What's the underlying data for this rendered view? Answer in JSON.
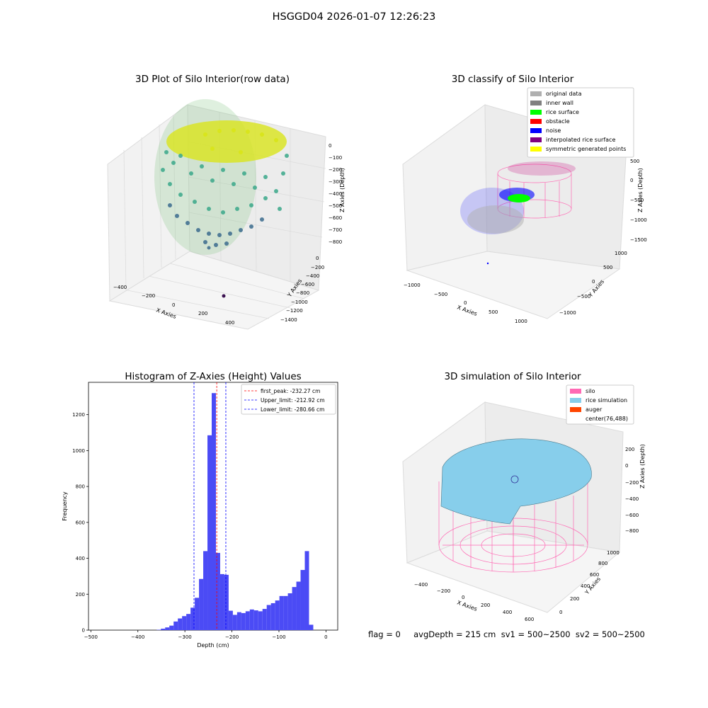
{
  "suptitle": "HSGGD04 2026-01-07 12:26:23",
  "panels": {
    "raw": {
      "title": "3D Plot of Silo Interior(row data)",
      "xlabel": "X Axies",
      "ylabel": "Y Axies",
      "zlabel": "Z Axies (Depth)",
      "xticks": [
        "−400",
        "−200",
        "0",
        "200",
        "400"
      ],
      "yticks": [
        "0",
        "−200",
        "−400",
        "−600",
        "−800",
        "−1000",
        "−1200",
        "−1400"
      ],
      "zticks": [
        "0",
        "−100",
        "−200",
        "−300",
        "−400",
        "−500",
        "−600",
        "−700",
        "−800"
      ]
    },
    "classify": {
      "title": "3D classify of Silo Interior",
      "xlabel": "X Axies",
      "ylabel": "Y Axies",
      "zlabel": "Z Axies (Depth)",
      "xticks": [
        "−1000",
        "−500",
        "0",
        "500",
        "1000"
      ],
      "yticks": [
        "1000",
        "500",
        "0",
        "−500",
        "−1000"
      ],
      "zticks": [
        "500",
        "0",
        "−500",
        "−1000",
        "−1500"
      ],
      "legend": [
        {
          "label": "original data",
          "color": "#b0b0b0"
        },
        {
          "label": "inner wall",
          "color": "#808080"
        },
        {
          "label": "rice surface",
          "color": "#00ff00"
        },
        {
          "label": "obstacle",
          "color": "#ff0000"
        },
        {
          "label": "noise",
          "color": "#0000ff"
        },
        {
          "label": "interpolated rice surface",
          "color": "#800080"
        },
        {
          "label": "symmetric generated points",
          "color": "#ffff00"
        }
      ]
    },
    "simulation": {
      "title": "3D simulation of Silo Interior",
      "xlabel": "X Axies",
      "ylabel": "Y Axies",
      "zlabel": "Z Axies (Depth)",
      "xticks": [
        "−400",
        "−200",
        "0",
        "200",
        "400",
        "600"
      ],
      "yticks": [
        "0",
        "200",
        "400",
        "600",
        "800",
        "1000"
      ],
      "zticks": [
        "200",
        "0",
        "−200",
        "−400",
        "−600",
        "−800"
      ],
      "legend": [
        {
          "label": "silo",
          "color": "#ff69b4"
        },
        {
          "label": "rice simulation",
          "color": "#87ceeb"
        },
        {
          "label": "auger",
          "color": "#ff4500"
        },
        {
          "label": "center(76,488)",
          "color": ""
        }
      ]
    }
  },
  "footer": "flag = 0     avgDepth = 215 cm  sv1 = 500~2500  sv2 = 500~2500",
  "chart_data": {
    "type": "bar",
    "title": "Histogram of Z-Axies (Height) Values",
    "xlabel": "Depth (cm)",
    "ylabel": "Frequency",
    "xlim": [
      -505,
      25
    ],
    "ylim": [
      0,
      1380
    ],
    "xticks": [
      -500,
      -400,
      -300,
      -200,
      -100,
      0
    ],
    "yticks": [
      0,
      200,
      400,
      600,
      800,
      1000,
      1200
    ],
    "bar_color": "#4b4bf5",
    "bins": [
      {
        "x0": -360,
        "x1": -351,
        "count": 2
      },
      {
        "x0": -351,
        "x1": -342,
        "count": 8
      },
      {
        "x0": -342,
        "x1": -333,
        "count": 15
      },
      {
        "x0": -333,
        "x1": -324,
        "count": 25
      },
      {
        "x0": -324,
        "x1": -315,
        "count": 48
      },
      {
        "x0": -315,
        "x1": -306,
        "count": 65
      },
      {
        "x0": -306,
        "x1": -297,
        "count": 78
      },
      {
        "x0": -297,
        "x1": -288,
        "count": 90
      },
      {
        "x0": -288,
        "x1": -279,
        "count": 125
      },
      {
        "x0": -279,
        "x1": -270,
        "count": 180
      },
      {
        "x0": -270,
        "x1": -261,
        "count": 285
      },
      {
        "x0": -261,
        "x1": -252,
        "count": 440
      },
      {
        "x0": -252,
        "x1": -243,
        "count": 1085
      },
      {
        "x0": -243,
        "x1": -234,
        "count": 1320
      },
      {
        "x0": -234,
        "x1": -225,
        "count": 430
      },
      {
        "x0": -225,
        "x1": -216,
        "count": 312
      },
      {
        "x0": -216,
        "x1": -207,
        "count": 308
      },
      {
        "x0": -207,
        "x1": -198,
        "count": 108
      },
      {
        "x0": -198,
        "x1": -189,
        "count": 85
      },
      {
        "x0": -189,
        "x1": -180,
        "count": 100
      },
      {
        "x0": -180,
        "x1": -171,
        "count": 95
      },
      {
        "x0": -171,
        "x1": -162,
        "count": 105
      },
      {
        "x0": -162,
        "x1": -153,
        "count": 115
      },
      {
        "x0": -153,
        "x1": -144,
        "count": 110
      },
      {
        "x0": -144,
        "x1": -135,
        "count": 105
      },
      {
        "x0": -135,
        "x1": -126,
        "count": 118
      },
      {
        "x0": -126,
        "x1": -117,
        "count": 140
      },
      {
        "x0": -117,
        "x1": -108,
        "count": 150
      },
      {
        "x0": -108,
        "x1": -99,
        "count": 165
      },
      {
        "x0": -99,
        "x1": -90,
        "count": 190
      },
      {
        "x0": -90,
        "x1": -81,
        "count": 190
      },
      {
        "x0": -81,
        "x1": -72,
        "count": 205
      },
      {
        "x0": -72,
        "x1": -63,
        "count": 240
      },
      {
        "x0": -63,
        "x1": -54,
        "count": 270
      },
      {
        "x0": -54,
        "x1": -45,
        "count": 335
      },
      {
        "x0": -45,
        "x1": -36,
        "count": 440
      },
      {
        "x0": -36,
        "x1": -27,
        "count": 30
      }
    ],
    "vlines": [
      {
        "label": "first_peak: -232.27 cm",
        "x": -232.27,
        "color": "#ff0000"
      },
      {
        "label": "Upper_limit: -212.92 cm",
        "x": -212.92,
        "color": "#0000ff"
      },
      {
        "label": "Lower_limit: -280.66 cm",
        "x": -280.66,
        "color": "#0000ff"
      }
    ]
  }
}
